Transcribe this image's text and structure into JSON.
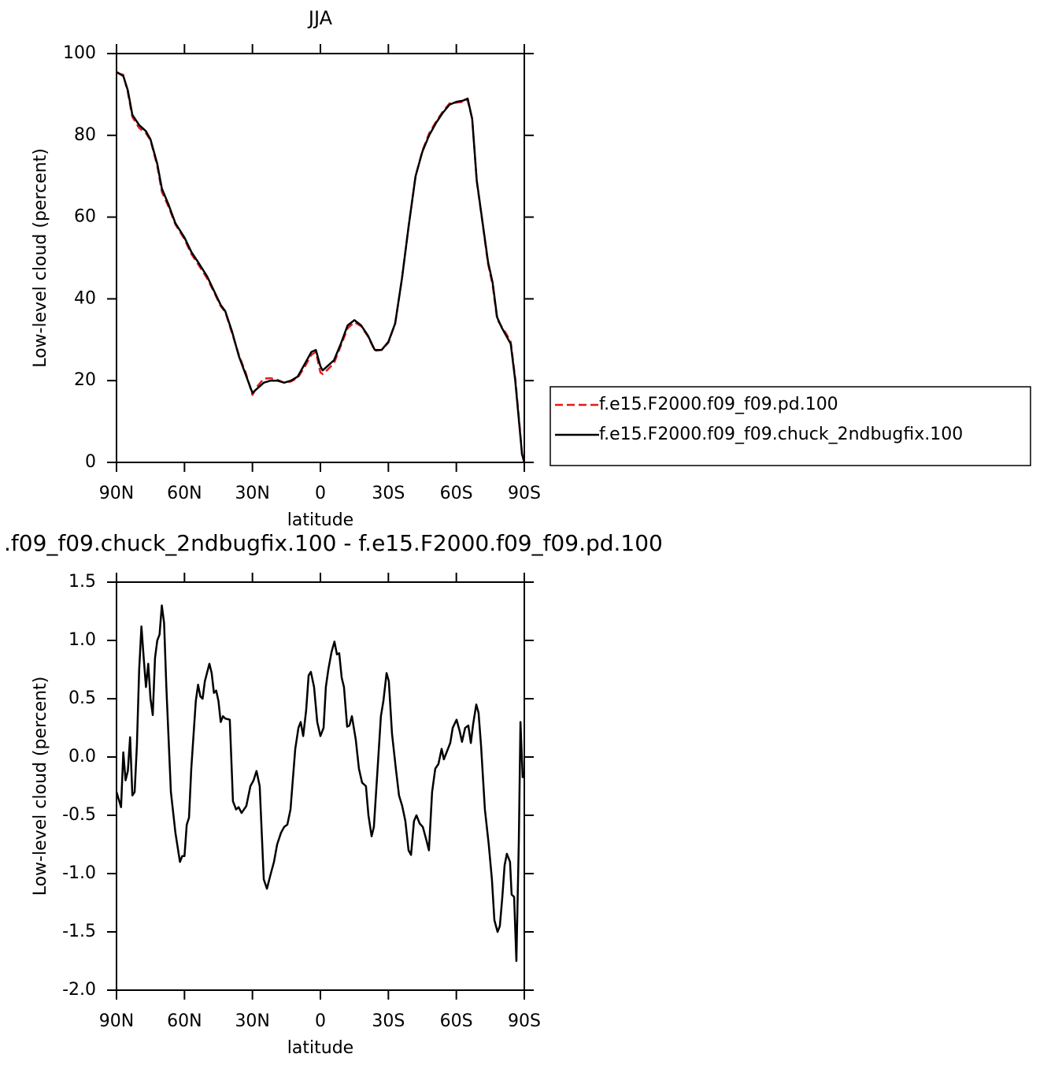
{
  "chart_data": [
    {
      "type": "line",
      "title": "JJA",
      "xlabel": "latitude",
      "ylabel": "Low-level cloud (percent)",
      "x": [
        90,
        87,
        85,
        83,
        80,
        77,
        75,
        72,
        70,
        67,
        64,
        60,
        57,
        54,
        50,
        47,
        44,
        42,
        39,
        36,
        33,
        30,
        28,
        25,
        22,
        19,
        16,
        13,
        10,
        7,
        4,
        2,
        0,
        -1,
        -3,
        -6,
        -9,
        -12,
        -15,
        -18,
        -21,
        -24,
        -27,
        -30,
        -33,
        -36,
        -39,
        -42,
        -45,
        -48,
        -51,
        -54,
        -57,
        -60,
        -63,
        -65,
        -67,
        -69,
        -72,
        -74,
        -76,
        -78,
        -80,
        -82,
        -84,
        -86,
        -88,
        -89,
        -90
      ],
      "series": [
        {
          "name": "f.e15.F2000.f09_f09.pd.100",
          "color": "#e41a1c",
          "linestyle": "dashed",
          "values": [
            95.3,
            94.8,
            90.5,
            84.5,
            81.8,
            80.5,
            78.8,
            72.5,
            66.2,
            62.5,
            58.2,
            54.6,
            51,
            48.5,
            45,
            41.7,
            38.2,
            36.8,
            31.6,
            26.3,
            22,
            16.5,
            18.5,
            20.5,
            20.6,
            20.2,
            19.5,
            19.8,
            20.7,
            23.3,
            26.3,
            27,
            22,
            21.6,
            22.6,
            24.3,
            28.5,
            32.8,
            34.3,
            33.3,
            30.8,
            27.3,
            27.5,
            29.3,
            34,
            45,
            58,
            70,
            76.2,
            80.5,
            83.3,
            85.8,
            87.8,
            88,
            88.2,
            88.6,
            84,
            68.8,
            56.8,
            48.5,
            43.5,
            35,
            33.2,
            31.5,
            29.5,
            20.5,
            8.5,
            2,
            0
          ]
        },
        {
          "name": "f.e15.F2000.f09_f09.chuck_2ndbugfix.100",
          "color": "#000000",
          "linestyle": "solid",
          "values": [
            95.5,
            94.5,
            91,
            85,
            82.5,
            81,
            79,
            73,
            67,
            63,
            58.5,
            55,
            51.5,
            49,
            45.5,
            42,
            38.5,
            37,
            32,
            26,
            21.5,
            17,
            18,
            19.5,
            20,
            20,
            19.5,
            20,
            21,
            24,
            27,
            27.5,
            23.5,
            22.5,
            23.5,
            25,
            29,
            33.5,
            34.8,
            33.5,
            31,
            27.5,
            27.5,
            29.5,
            34,
            45,
            58,
            70,
            76,
            80,
            83,
            85.5,
            87.5,
            88.2,
            88.5,
            89,
            84,
            69,
            57,
            49,
            44,
            35.5,
            33,
            31,
            29,
            20,
            8,
            2,
            0
          ]
        }
      ],
      "xlim": [
        90,
        -90
      ],
      "xticks": [
        {
          "value": 90,
          "label": "90N"
        },
        {
          "value": 60,
          "label": "60N"
        },
        {
          "value": 30,
          "label": "30N"
        },
        0,
        {
          "value": -30,
          "label": "30S"
        },
        {
          "value": -60,
          "label": "60S"
        },
        {
          "value": -90,
          "label": "90S"
        }
      ],
      "ylim": [
        0,
        100
      ],
      "yticks": [
        0,
        20,
        40,
        60,
        80,
        100
      ],
      "legend": "right"
    },
    {
      "type": "line",
      "title": ".f09_f09.chuck_2ndbugfix.100 - f.e15.F2000.f09_f09.pd.100",
      "xlabel": "latitude",
      "ylabel": "Low-level cloud (percent)",
      "x": [
        90,
        88,
        87,
        86,
        85,
        84,
        83,
        82,
        81,
        80,
        79,
        78,
        77,
        76,
        75,
        74,
        73,
        72,
        71,
        70,
        69,
        68,
        66,
        64,
        62,
        61,
        60,
        59,
        58,
        57,
        55,
        54,
        53,
        52,
        51,
        49,
        48,
        47,
        46,
        45,
        44,
        43,
        42,
        40,
        38.6,
        37.2,
        36.1,
        34.8,
        32.7,
        30.9,
        29.5,
        28.2,
        26.8,
        25,
        23.6,
        21.9,
        20.5,
        19.1,
        17.4,
        16,
        14.6,
        13.2,
        12.2,
        11.1,
        9.7,
        8.7,
        7.6,
        6.3,
        5.2,
        4.2,
        2.8,
        1.4,
        0,
        -1.4,
        -2.4,
        -3.5,
        -4.9,
        -6.2,
        -7.3,
        -8.3,
        -9.4,
        -10.4,
        -11.8,
        -12.8,
        -13.9,
        -15.6,
        -17,
        -18.4,
        -20.1,
        -21.2,
        -22.6,
        -23.6,
        -25.4,
        -26.7,
        -27.8,
        -29.2,
        -30.2,
        -31.6,
        -33.3,
        -34.7,
        -36.1,
        -37.5,
        -38.9,
        -40,
        -41.3,
        -42.4,
        -43.8,
        -45.2,
        -46.6,
        -47.9,
        -49.3,
        -50.7,
        -52.1,
        -53.5,
        -54.5,
        -55.9,
        -57.3,
        -58.4,
        -60.1,
        -61.5,
        -62.5,
        -63.9,
        -65.3,
        -66.4,
        -67.4,
        -68.8,
        -69.8,
        -70.9,
        -72.6,
        -74.3,
        -75.7,
        -76.8,
        -78.2,
        -79.2,
        -80.3,
        -81.3,
        -82.3,
        -83.7,
        -84.4,
        -85.5,
        -86.5,
        -87.6,
        -88.3,
        -89.3
      ],
      "values": [
        -0.3,
        -0.43,
        0.04,
        -0.2,
        -0.12,
        0.17,
        -0.33,
        -0.3,
        0.1,
        0.75,
        1.12,
        0.85,
        0.6,
        0.8,
        0.5,
        0.36,
        0.85,
        1.0,
        1.05,
        1.3,
        1.15,
        0.6,
        -0.3,
        -0.65,
        -0.9,
        -0.85,
        -0.85,
        -0.58,
        -0.52,
        -0.1,
        0.48,
        0.62,
        0.52,
        0.5,
        0.65,
        0.8,
        0.72,
        0.55,
        0.57,
        0.48,
        0.3,
        0.35,
        0.33,
        0.32,
        -0.38,
        -0.45,
        -0.43,
        -0.48,
        -0.42,
        -0.25,
        -0.2,
        -0.12,
        -0.25,
        -1.05,
        -1.13,
        -1.0,
        -0.9,
        -0.75,
        -0.65,
        -0.6,
        -0.58,
        -0.45,
        -0.2,
        0.07,
        0.25,
        0.3,
        0.18,
        0.4,
        0.7,
        0.73,
        0.6,
        0.3,
        0.18,
        0.25,
        0.6,
        0.75,
        0.9,
        0.99,
        0.88,
        0.89,
        0.68,
        0.6,
        0.26,
        0.27,
        0.35,
        0.15,
        -0.1,
        -0.22,
        -0.25,
        -0.5,
        -0.68,
        -0.6,
        -0.05,
        0.35,
        0.48,
        0.72,
        0.65,
        0.2,
        -0.1,
        -0.33,
        -0.42,
        -0.55,
        -0.8,
        -0.84,
        -0.55,
        -0.5,
        -0.57,
        -0.6,
        -0.7,
        -0.8,
        -0.3,
        -0.1,
        -0.06,
        0.07,
        -0.02,
        0.05,
        0.12,
        0.25,
        0.32,
        0.22,
        0.13,
        0.25,
        0.27,
        0.12,
        0.28,
        0.45,
        0.38,
        0.1,
        -0.45,
        -0.75,
        -1.05,
        -1.4,
        -1.5,
        -1.45,
        -1.2,
        -0.93,
        -0.83,
        -0.9,
        -1.18,
        -1.2,
        -1.75,
        -0.7,
        0.3,
        -0.18
      ],
      "color": "#000000",
      "xlim": [
        90,
        -90
      ],
      "xticks": [
        {
          "value": 90,
          "label": "90N"
        },
        {
          "value": 60,
          "label": "60N"
        },
        {
          "value": 30,
          "label": "30N"
        },
        0,
        {
          "value": -30,
          "label": "30S"
        },
        {
          "value": -60,
          "label": "60S"
        },
        {
          "value": -90,
          "label": "90S"
        }
      ],
      "ylim": [
        -2,
        1.5
      ],
      "yticks": [
        {
          "value": -2,
          "label": "-2.0"
        },
        -1.5,
        {
          "value": -1,
          "label": "-1.0"
        },
        -0.5,
        {
          "value": 0,
          "label": "0.0"
        },
        0.5,
        {
          "value": 1,
          "label": "1.0"
        },
        1.5
      ]
    }
  ]
}
